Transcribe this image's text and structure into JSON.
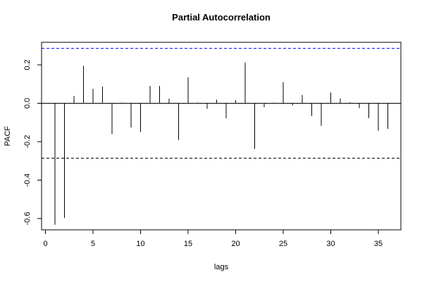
{
  "chart_data": {
    "type": "bar",
    "title": "Partial Autocorrelation",
    "xlabel": "lags",
    "ylabel": "PACF",
    "xlim": [
      0,
      37
    ],
    "ylim": [
      -0.65,
      0.32
    ],
    "x_ticks": [
      0,
      5,
      10,
      15,
      20,
      25,
      30,
      35
    ],
    "y_ticks": [
      -0.6,
      -0.4,
      -0.2,
      0.0,
      0.2
    ],
    "y_tick_labels": [
      "-0.6",
      "-0.4",
      "-0.2",
      "0.0",
      "0.2"
    ],
    "confidence_bound": 0.286,
    "confidence_upper_color": "#0000ff",
    "confidence_lower_color": "#000000",
    "x": [
      1,
      2,
      3,
      4,
      5,
      6,
      7,
      8,
      9,
      10,
      11,
      12,
      13,
      14,
      15,
      16,
      17,
      18,
      19,
      20,
      21,
      22,
      23,
      24,
      25,
      26,
      27,
      28,
      29,
      30,
      31,
      32,
      33,
      34,
      35,
      36
    ],
    "values": [
      -0.632,
      -0.597,
      0.038,
      0.195,
      0.075,
      0.087,
      -0.16,
      0.003,
      -0.126,
      -0.15,
      0.09,
      0.09,
      0.024,
      -0.191,
      0.135,
      0.003,
      -0.029,
      0.019,
      -0.078,
      0.016,
      0.212,
      -0.238,
      -0.02,
      0.003,
      0.11,
      -0.01,
      0.043,
      -0.066,
      -0.118,
      0.056,
      0.025,
      0.005,
      -0.025,
      -0.077,
      -0.143,
      -0.133
    ]
  }
}
